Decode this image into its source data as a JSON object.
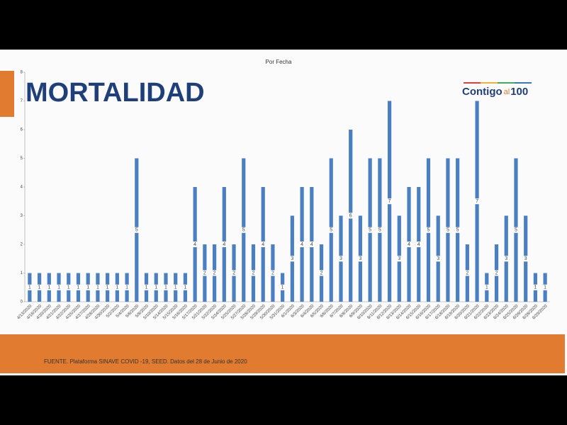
{
  "header": {
    "title": "MORTALIDAD",
    "logo": [
      "Contigo",
      "al",
      "100"
    ]
  },
  "chart_data": {
    "type": "bar",
    "title": "Por Fecha",
    "categories": [
      "4/13/2020",
      "4/16/2020",
      "4/20/2020",
      "4/21/2020",
      "4/22/2020",
      "4/25/2020",
      "4/27/2020",
      "4/28/2020",
      "4/30/2020",
      "5/2/2020",
      "5/4/2020",
      "5/6/2020",
      "5/8/2020",
      "5/10/2020",
      "5/14/2020",
      "5/15/2020",
      "5/16/2020",
      "5/17/2020",
      "5/21/2020",
      "5/22/2020",
      "5/24/2020",
      "5/25/2020",
      "5/27/2020",
      "5/28/2020",
      "5/29/2020",
      "5/30/2020",
      "5/31/2020",
      "6/1/2020",
      "6/3/2020",
      "6/4/2020",
      "6/5/2020",
      "6/6/2020",
      "6/7/2020",
      "6/8/2020",
      "6/9/2020",
      "6/10/2020",
      "6/11/2020",
      "6/12/2020",
      "6/13/2020",
      "6/14/2020",
      "6/15/2020",
      "6/16/2020",
      "6/17/2020",
      "6/18/2020",
      "6/19/2020",
      "6/20/2020",
      "6/21/2020",
      "6/22/2020",
      "6/23/2020",
      "6/24/2020",
      "6/25/2020",
      "6/26/2020",
      "6/28/2020",
      "6/29/2020"
    ],
    "values": [
      1,
      1,
      1,
      1,
      1,
      1,
      1,
      1,
      1,
      1,
      1,
      5,
      1,
      1,
      1,
      1,
      1,
      4,
      2,
      2,
      4,
      2,
      5,
      2,
      4,
      2,
      1,
      3,
      4,
      4,
      2,
      5,
      3,
      6,
      3,
      5,
      5,
      7,
      3,
      4,
      4,
      5,
      3,
      5,
      5,
      2,
      7,
      1,
      2,
      3,
      5,
      3,
      1,
      1
    ],
    "color": "#4a7fc1",
    "ylim": [
      0,
      8
    ],
    "yticks": [
      0,
      1,
      2,
      3,
      4,
      5,
      6,
      7,
      8
    ]
  },
  "footer": {
    "source": "FUENTE. Plataforma SINAVE COVID -19, SEED. Datos del 28 de Junio de 2020"
  }
}
